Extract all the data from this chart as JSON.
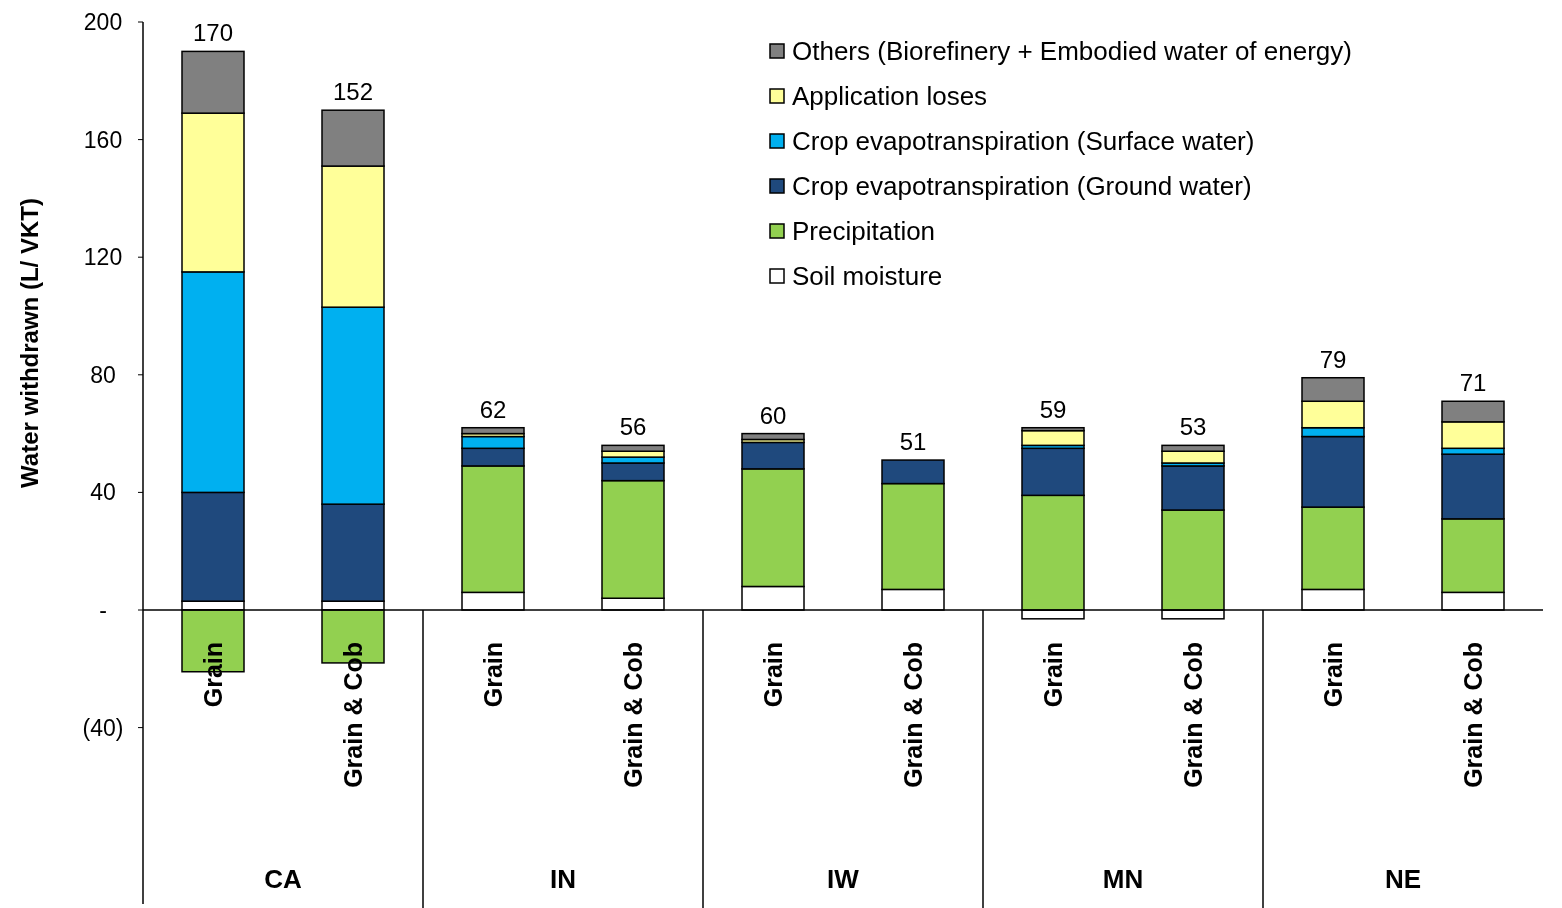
{
  "chart_data": {
    "type": "bar",
    "stacked": true,
    "ylabel": "Water withdrawn (L/ VKT)",
    "categories": [
      "Grain",
      "Grain & Cob",
      "Grain",
      "Grain & Cob",
      "Grain",
      "Grain & Cob",
      "Grain",
      "Grain & Cob",
      "Grain",
      "Grain & Cob"
    ],
    "annotations": [
      "CA",
      "IN",
      "IW",
      "MN",
      "NE"
    ],
    "series": [
      {
        "name": "Soil moisture",
        "color": "#ffffff",
        "values": [
          3,
          3,
          6,
          4,
          8,
          7,
          -3,
          -3,
          7,
          6
        ]
      },
      {
        "name": "Precipitation",
        "color": "#92d050",
        "values": [
          -21,
          -18,
          43,
          40,
          40,
          36,
          39,
          34,
          28,
          25
        ]
      },
      {
        "name": "Crop evapotranspiration (Ground water)",
        "color": "#1f497d",
        "values": [
          37,
          33,
          6,
          6,
          9,
          8,
          16,
          15,
          24,
          22
        ]
      },
      {
        "name": "Crop evapotranspiration (Surface water)",
        "color": "#00b0f0",
        "values": [
          75,
          67,
          4,
          2,
          0,
          0,
          1,
          1,
          3,
          2
        ]
      },
      {
        "name": "Application loses",
        "color": "#ffff99",
        "values": [
          54,
          48,
          1,
          2,
          1,
          0,
          5,
          4,
          9,
          9
        ]
      },
      {
        "name": "Others (Biorefinery + Embodied water of energy)",
        "color": "#808080",
        "values": [
          21,
          19,
          2,
          2,
          2,
          0,
          1,
          2,
          8,
          7
        ]
      }
    ],
    "totals": [
      "170",
      "152",
      "62",
      "56",
      "60",
      "51",
      "59",
      "53",
      "79",
      "71"
    ],
    "ylim": [
      -100,
      200
    ],
    "yticks": [
      200,
      160,
      120,
      80,
      40,
      {
        "value": 0,
        "label": "-"
      },
      {
        "value": -40,
        "label": "(40)"
      }
    ],
    "legend": "top right"
  }
}
